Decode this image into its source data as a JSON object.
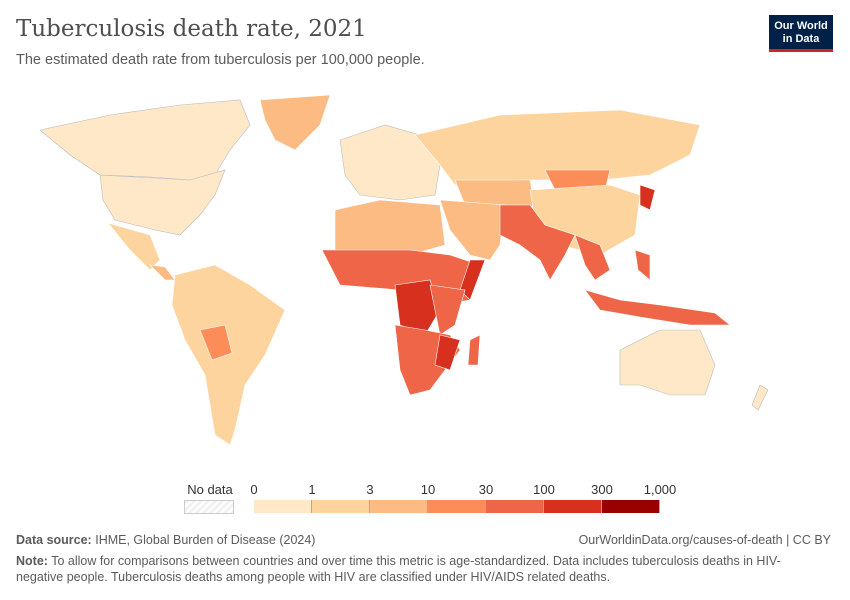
{
  "title": "Tuberculosis death rate, 2021",
  "subtitle": "The estimated death rate from tuberculosis per 100,000 people.",
  "logo": {
    "line1": "Our World",
    "line2": "in Data"
  },
  "legend": {
    "no_data": "No data",
    "ticks": [
      "0",
      "1",
      "3",
      "10",
      "30",
      "100",
      "300",
      "1,000"
    ],
    "colors": [
      "#fee8c8",
      "#fdd49e",
      "#fdbb84",
      "#fc8d59",
      "#ef6548",
      "#d7301f",
      "#990000"
    ]
  },
  "footer": {
    "source_label": "Data source:",
    "source": "IHME, Global Burden of Disease (2024)",
    "url": "OurWorldinData.org/causes-of-death | CC BY",
    "note_label": "Note:",
    "note": "To allow for comparisons between countries and over time this metric is age-standardized. Data includes tuberculosis deaths in HIV-negative people. Tuberculosis deaths among people with HIV are classified under HIV/AIDS related deaths."
  }
}
